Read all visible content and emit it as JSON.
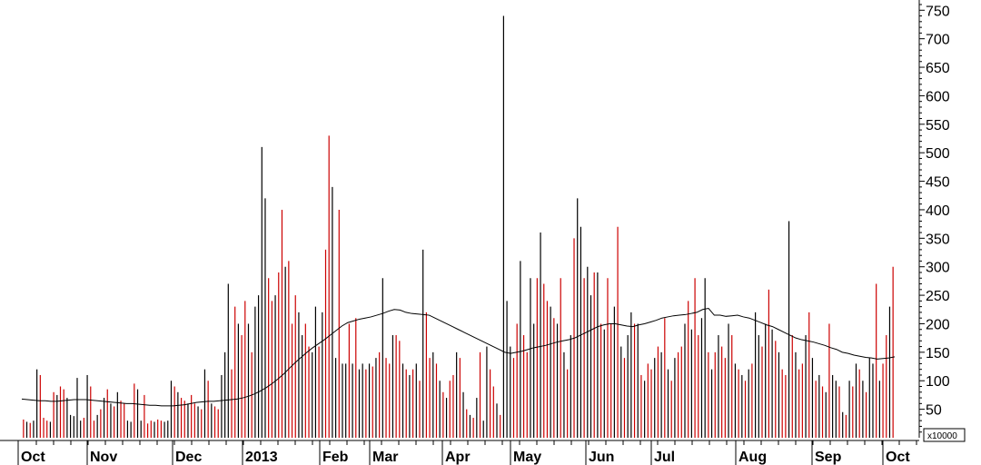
{
  "chart_data": {
    "type": "bar",
    "scale_multiplier_label": "x10000",
    "ylim": [
      0,
      760
    ],
    "y_ticks": [
      50,
      100,
      150,
      200,
      250,
      300,
      350,
      400,
      450,
      500,
      550,
      600,
      650,
      700,
      750
    ],
    "x_tick_labels": [
      "Oct",
      "Nov",
      "Dec",
      "2013",
      "Feb",
      "Mar",
      "Apr",
      "May",
      "Jun",
      "Jul",
      "Aug",
      "Sep",
      "Oct"
    ],
    "colors": {
      "up": "#cc0000",
      "down": "#000000",
      "average": "#000000",
      "axis": "#000000"
    },
    "series": [
      {
        "kind": "volume_bars",
        "values": [
          32,
          28,
          26,
          30,
          120,
          110,
          35,
          30,
          28,
          80,
          75,
          90,
          85,
          70,
          40,
          38,
          105,
          30,
          35,
          110,
          90,
          30,
          40,
          50,
          70,
          85,
          60,
          55,
          80,
          65,
          60,
          30,
          28,
          95,
          85,
          30,
          75,
          25,
          30,
          28,
          32,
          30,
          28,
          30,
          100,
          90,
          80,
          70,
          65,
          60,
          75,
          60,
          55,
          50,
          120,
          100,
          60,
          55,
          50,
          110,
          150,
          270,
          120,
          230,
          200,
          180,
          240,
          200,
          150,
          230,
          250,
          510,
          420,
          280,
          240,
          250,
          290,
          400,
          300,
          310,
          200,
          250,
          220,
          180,
          200,
          160,
          150,
          230,
          160,
          220,
          330,
          530,
          440,
          140,
          400,
          130,
          130,
          200,
          130,
          210,
          120,
          130,
          120,
          130,
          125,
          140,
          150,
          280,
          140,
          130,
          180,
          180,
          170,
          130,
          120,
          110,
          120,
          130,
          100,
          330,
          220,
          140,
          150,
          130,
          100,
          80,
          70,
          100,
          110,
          150,
          140,
          80,
          50,
          40,
          35,
          70,
          150,
          30,
          160,
          120,
          90,
          60,
          40,
          740,
          240,
          160,
          140,
          200,
          310,
          180,
          150,
          280,
          200,
          280,
          360,
          270,
          240,
          230,
          210,
          200,
          280,
          150,
          120,
          180,
          350,
          420,
          370,
          280,
          300,
          250,
          290,
          290,
          200,
          190,
          280,
          200,
          230,
          370,
          160,
          140,
          180,
          220,
          200,
          200,
          110,
          100,
          130,
          120,
          140,
          160,
          150,
          210,
          120,
          100,
          140,
          150,
          160,
          200,
          240,
          190,
          280,
          180,
          210,
          280,
          150,
          120,
          150,
          180,
          160,
          140,
          200,
          180,
          130,
          120,
          110,
          100,
          120,
          130,
          220,
          180,
          160,
          200,
          260,
          190,
          170,
          150,
          120,
          110,
          380,
          180,
          150,
          120,
          130,
          180,
          220,
          140,
          100,
          110,
          90,
          80,
          200,
          110,
          100,
          90,
          45,
          40,
          100,
          90,
          130,
          120,
          100,
          80,
          140,
          130,
          270,
          100,
          130,
          180,
          230,
          300
        ],
        "colors": [
          "up",
          "down",
          "up",
          "down",
          "down",
          "up",
          "up",
          "up",
          "down",
          "up",
          "down",
          "up",
          "up",
          "down",
          "down",
          "down",
          "down",
          "down",
          "up",
          "down",
          "up",
          "up",
          "down",
          "up",
          "down",
          "up",
          "down",
          "up",
          "down",
          "up",
          "up",
          "down",
          "down",
          "up",
          "down",
          "down",
          "up",
          "up",
          "up",
          "down",
          "up",
          "up",
          "down",
          "down",
          "down",
          "up",
          "down",
          "up",
          "up",
          "down",
          "up",
          "up",
          "down",
          "up",
          "down",
          "up",
          "down",
          "up",
          "up",
          "down",
          "down",
          "down",
          "up",
          "up",
          "down",
          "up",
          "up",
          "down",
          "up",
          "down",
          "down",
          "down",
          "down",
          "up",
          "up",
          "down",
          "up",
          "up",
          "down",
          "up",
          "up",
          "up",
          "down",
          "down",
          "up",
          "up",
          "down",
          "down",
          "up",
          "down",
          "up",
          "up",
          "down",
          "down",
          "up",
          "down",
          "down",
          "up",
          "down",
          "up",
          "down",
          "down",
          "up",
          "down",
          "up",
          "down",
          "up",
          "down",
          "up",
          "up",
          "down",
          "up",
          "up",
          "down",
          "up",
          "down",
          "up",
          "down",
          "up",
          "down",
          "up",
          "up",
          "down",
          "up",
          "down",
          "up",
          "down",
          "up",
          "up",
          "down",
          "up",
          "down",
          "up",
          "down",
          "up",
          "down",
          "up",
          "down",
          "down",
          "up",
          "up",
          "down",
          "up",
          "down",
          "down",
          "down",
          "up",
          "up",
          "down",
          "up",
          "up",
          "down",
          "down",
          "up",
          "down",
          "up",
          "up",
          "down",
          "up",
          "down",
          "up",
          "down",
          "up",
          "down",
          "up",
          "down",
          "down",
          "up",
          "down",
          "down",
          "up",
          "down",
          "up",
          "down",
          "up",
          "up",
          "down",
          "up",
          "down",
          "up",
          "down",
          "down",
          "up",
          "down",
          "up",
          "down",
          "up",
          "up",
          "down",
          "up",
          "down",
          "up",
          "down",
          "up",
          "down",
          "up",
          "up",
          "down",
          "up",
          "down",
          "up",
          "up",
          "down",
          "down",
          "up",
          "down",
          "up",
          "down",
          "up",
          "up",
          "down",
          "up",
          "down",
          "up",
          "down",
          "up",
          "down",
          "up",
          "down",
          "down",
          "up",
          "down",
          "up",
          "down",
          "up",
          "down",
          "up",
          "up",
          "down",
          "up",
          "down",
          "up",
          "up",
          "down",
          "up",
          "down",
          "up",
          "down",
          "up",
          "down",
          "up",
          "down",
          "down",
          "up",
          "down",
          "up",
          "down",
          "up",
          "down",
          "up",
          "down",
          "up",
          "down",
          "down",
          "up",
          "down",
          "up",
          "up",
          "down",
          "up",
          "down",
          "up",
          "down",
          "up",
          "down",
          "up",
          "down",
          "up"
        ]
      },
      {
        "kind": "moving_average",
        "values": [
          68,
          67,
          66,
          65,
          65,
          64,
          64,
          65,
          66,
          67,
          67,
          67,
          66,
          65,
          64,
          63,
          62,
          61,
          60,
          60,
          59,
          58,
          57,
          57,
          56,
          56,
          56,
          57,
          58,
          60,
          62,
          63,
          64,
          64,
          65,
          66,
          67,
          68,
          70,
          73,
          77,
          82,
          88,
          95,
          103,
          112,
          122,
          132,
          141,
          150,
          158,
          165,
          172,
          180,
          188,
          196,
          202,
          205,
          208,
          210,
          212,
          215,
          218,
          222,
          225,
          224,
          220,
          218,
          217,
          216,
          215,
          210,
          205,
          200,
          195,
          190,
          185,
          180,
          175,
          170,
          165,
          160,
          155,
          150,
          148,
          150,
          152,
          155,
          158,
          160,
          162,
          165,
          168,
          170,
          172,
          175,
          180,
          185,
          190,
          195,
          198,
          200,
          200,
          198,
          196,
          195,
          198,
          200,
          203,
          206,
          210,
          212,
          214,
          215,
          216,
          218,
          220,
          225,
          227,
          215,
          215,
          213,
          214,
          215,
          212,
          210,
          206,
          202,
          198,
          195,
          190,
          185,
          180,
          175,
          172,
          170,
          168,
          165,
          162,
          158,
          155,
          150,
          148,
          145,
          143,
          141,
          140,
          138,
          139,
          140,
          142
        ]
      }
    ]
  }
}
